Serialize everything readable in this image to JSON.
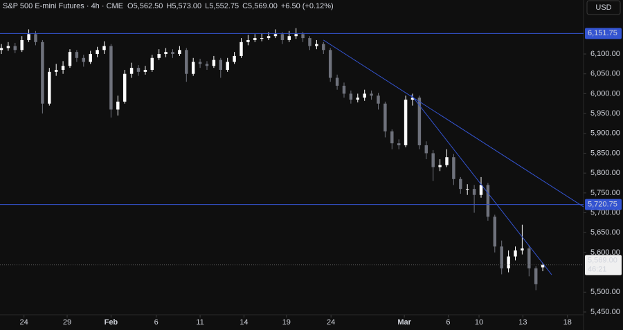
{
  "chart_data": {
    "type": "candlestick",
    "title": "S&P 500 E-mini Futures · 4h · CME",
    "header_values": [
      "O5,562.50",
      "H5,573.00",
      "L5,552.75",
      "C5,569.00",
      "+6.50 (+0.12%)"
    ],
    "currency": "USD",
    "up_color": "#ffffff",
    "down_color": "#6f727c",
    "line_color": "#3454d1",
    "open": [
      6110,
      6115,
      6120,
      6110,
      6135,
      6150,
      6130,
      5975,
      6055,
      6060,
      6070,
      6105,
      6090,
      6080,
      6100,
      6110,
      6120,
      5960,
      5980,
      6050,
      6065,
      6055,
      6060,
      6090,
      6100,
      6105,
      6100,
      6110,
      6050,
      6080,
      6075,
      6070,
      6085,
      6060,
      6080,
      6095,
      6130,
      6135,
      6140,
      6140,
      6145,
      6150,
      6135,
      6145,
      6150,
      6140,
      6120,
      6125,
      6110,
      6040,
      6020,
      6000,
      5985,
      5990,
      6000,
      5995,
      5975,
      5905,
      5875,
      5870,
      5985,
      5990,
      5870,
      5850,
      5815,
      5820,
      5840,
      5785,
      5760,
      5760,
      5745,
      5770,
      5690,
      5615,
      5560,
      5590,
      5605,
      5610,
      5560,
      5562.5
    ],
    "high": [
      6125,
      6130,
      6128,
      6145,
      6162,
      6158,
      6135,
      6065,
      6075,
      6082,
      6112,
      6110,
      6098,
      6108,
      6118,
      6132,
      6125,
      5995,
      6060,
      6078,
      6072,
      6070,
      6098,
      6112,
      6115,
      6112,
      6120,
      6115,
      6090,
      6088,
      6082,
      6095,
      6090,
      6090,
      6105,
      6140,
      6148,
      6150,
      6152,
      6155,
      6162,
      6155,
      6158,
      6165,
      6156,
      6145,
      6135,
      6130,
      6115,
      6048,
      6028,
      6008,
      6000,
      6010,
      6008,
      6002,
      5980,
      5910,
      5885,
      5995,
      6000,
      5995,
      5880,
      5858,
      5835,
      5860,
      5848,
      5790,
      5772,
      5770,
      5790,
      5775,
      5695,
      5630,
      5605,
      5615,
      5670,
      5618,
      5565,
      5573
    ],
    "low": [
      6100,
      6108,
      6102,
      6105,
      6130,
      6122,
      5950,
      5970,
      6045,
      6050,
      6065,
      6080,
      6068,
      6075,
      6092,
      6100,
      5940,
      5945,
      5975,
      6040,
      6045,
      6048,
      6055,
      6085,
      6092,
      6090,
      6095,
      6030,
      6045,
      6065,
      6060,
      6065,
      6040,
      6055,
      6075,
      6090,
      6122,
      6130,
      6132,
      6135,
      6140,
      6125,
      6130,
      6138,
      6130,
      6110,
      6112,
      6100,
      6030,
      6010,
      5990,
      5975,
      5978,
      5982,
      5985,
      5960,
      5890,
      5860,
      5860,
      5865,
      5970,
      5860,
      5835,
      5780,
      5805,
      5815,
      5770,
      5748,
      5745,
      5700,
      5738,
      5680,
      5600,
      5545,
      5550,
      5580,
      5595,
      5540,
      5505,
      5552.75
    ],
    "close": [
      6115,
      6120,
      6110,
      6135,
      6150,
      6130,
      5975,
      6055,
      6060,
      6070,
      6105,
      6090,
      6080,
      6100,
      6110,
      6120,
      5960,
      5980,
      6050,
      6065,
      6055,
      6060,
      6090,
      6100,
      6105,
      6100,
      6110,
      6050,
      6080,
      6075,
      6070,
      6085,
      6060,
      6080,
      6095,
      6130,
      6135,
      6140,
      6140,
      6145,
      6150,
      6135,
      6145,
      6150,
      6140,
      6120,
      6125,
      6110,
      6040,
      6020,
      6000,
      5985,
      5990,
      6000,
      5995,
      5975,
      5905,
      5875,
      5870,
      5985,
      5990,
      5870,
      5850,
      5815,
      5820,
      5840,
      5785,
      5760,
      5760,
      5745,
      5770,
      5690,
      5615,
      5560,
      5590,
      5605,
      5610,
      5560,
      5520,
      5569
    ],
    "xlim": [
      -0.2,
      84.95
    ],
    "xticks": [
      {
        "value": 3.3,
        "label": "24"
      },
      {
        "value": 9.6,
        "label": "29"
      },
      {
        "value": 16,
        "label": "Feb"
      },
      {
        "value": 22.6,
        "label": "6"
      },
      {
        "value": 29,
        "label": "11"
      },
      {
        "value": 35.4,
        "label": "14"
      },
      {
        "value": 41.6,
        "label": "19"
      },
      {
        "value": 48.1,
        "label": "24"
      },
      {
        "value": 58.8,
        "label": "Mar"
      },
      {
        "value": 65.2,
        "label": "6"
      },
      {
        "value": 69.7,
        "label": "10"
      },
      {
        "value": 76.1,
        "label": "13"
      },
      {
        "value": 82.6,
        "label": "18"
      }
    ],
    "ylim": [
      5443,
      6236
    ],
    "yticks": [
      {
        "value": 6100,
        "label": "6,100.00"
      },
      {
        "value": 6050,
        "label": "6,050.00"
      },
      {
        "value": 6000,
        "label": "6,000.00"
      },
      {
        "value": 5950,
        "label": "5,950.00"
      },
      {
        "value": 5900,
        "label": "5,900.00"
      },
      {
        "value": 5850,
        "label": "5,850.00"
      },
      {
        "value": 5800,
        "label": "5,800.00"
      },
      {
        "value": 5750,
        "label": "5,750.00"
      },
      {
        "value": 5700,
        "label": "5,700.00"
      },
      {
        "value": 5650,
        "label": "5,650.00"
      },
      {
        "value": 5600,
        "label": "5,600.00"
      },
      {
        "value": 5500,
        "label": "5,500.00"
      },
      {
        "value": 5450,
        "label": "5,450.00"
      }
    ],
    "hlines": [
      {
        "value": 6151.75,
        "label": "6,151.75"
      },
      {
        "value": 5720.75,
        "label": "5,720.75"
      }
    ],
    "trendlines": [
      {
        "x": [
          47,
          84.95
        ],
        "y": [
          6135,
          5715
        ]
      },
      {
        "x": [
          59.8,
          80.3
        ],
        "y": [
          5997,
          5544
        ]
      }
    ],
    "last_price": {
      "value": 5569,
      "label": "5,569.00",
      "countdown": "46:21"
    }
  }
}
